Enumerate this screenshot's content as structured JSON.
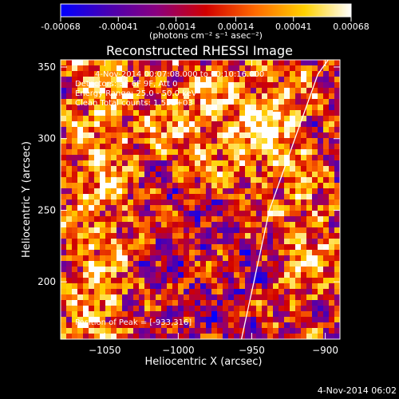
{
  "colorbar": {
    "tick_labels": [
      "-0.00068",
      "-0.00041",
      "-0.00014",
      "0.00014",
      "0.00041",
      "0.00068"
    ],
    "tick_values": [
      -0.00068,
      -0.00041,
      -0.00014,
      0.00014,
      0.00041,
      0.00068
    ],
    "unit_label": "(photons cm⁻² s⁻¹ asec⁻²)",
    "min": -0.00068,
    "max": 0.00068,
    "colors": [
      "#0000ff",
      "#4b00b0",
      "#8a007f",
      "#d10000",
      "#ff6a00",
      "#ffd100",
      "#ffffff"
    ]
  },
  "chart_data": {
    "type": "heatmap",
    "title": "Reconstructed RHESSI Image",
    "xlabel": "Heliocentric X (arcsec)",
    "ylabel": "Heliocentric Y (arcsec)",
    "xlim": [
      -1080,
      -890
    ],
    "ylim": [
      160,
      355
    ],
    "x_tick_labels": [
      "-1050",
      "-1000",
      "-950",
      "-900"
    ],
    "x_ticks": [
      -1050,
      -1000,
      -950,
      -900
    ],
    "y_tick_labels": [
      "200",
      "250",
      "300",
      "350"
    ],
    "y_ticks": [
      200,
      250,
      300,
      350
    ],
    "annotations": [
      "4-Nov-2014 00:07:08.000 to 00:10:16.000",
      "Detectors: 3F 6F 9F, Att 0",
      "Energy Range: 25.0 - 50.0 keV",
      "Clean    Total counts: 1.55E+03",
      "Position of Peak = [-933,316]"
    ],
    "peak": [
      -933,
      316
    ],
    "limb_line": [
      [
        -957,
        160
      ],
      [
        -938,
        250
      ],
      [
        -905,
        345
      ],
      [
        -898,
        355
      ]
    ]
  },
  "footer": {
    "timestamp": "4-Nov-2014 06:02"
  }
}
